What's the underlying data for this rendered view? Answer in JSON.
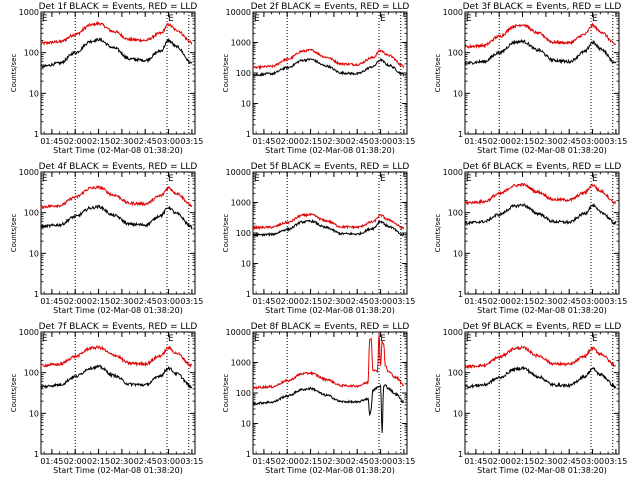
{
  "chart_data": [
    {
      "type": "line",
      "title": "Det 1f BLACK = Events, RED = LLD",
      "xlabel": "Start Time (02-Mar-08 01:38:20)",
      "ylabel": "Counts/sec",
      "yscale": "log",
      "ylim": [
        1,
        1000
      ],
      "yticks": [
        "1",
        "10",
        "100",
        "1000"
      ],
      "xticks": [
        "01:45",
        "02:00",
        "02:15",
        "02:30",
        "02:45",
        "03:00",
        "03:15"
      ],
      "xlim": [
        "01:38",
        "03:17"
      ],
      "markers": [
        {
          "time": "01:38",
          "label": "E"
        },
        {
          "time": "02:00",
          "label": ""
        },
        {
          "time": "02:59",
          "label": "E"
        },
        {
          "time": "03:13",
          "label": ""
        }
      ],
      "series": [
        {
          "name": "LLD",
          "color": "#e00000",
          "x": [
            "01:38",
            "01:50",
            "02:00",
            "02:10",
            "02:15",
            "02:25",
            "02:35",
            "02:45",
            "02:55",
            "03:00",
            "03:05",
            "03:15"
          ],
          "values": [
            170,
            185,
            280,
            480,
            520,
            330,
            210,
            200,
            300,
            490,
            360,
            180
          ]
        },
        {
          "name": "Events",
          "color": "#000000",
          "x": [
            "01:38",
            "01:50",
            "02:00",
            "02:10",
            "02:15",
            "02:25",
            "02:35",
            "02:45",
            "02:55",
            "03:00",
            "03:05",
            "03:15"
          ],
          "values": [
            45,
            55,
            100,
            190,
            210,
            130,
            70,
            65,
            110,
            200,
            140,
            55
          ]
        }
      ]
    },
    {
      "type": "line",
      "title": "Det 2f BLACK = Events, RED = LLD",
      "xlabel": "Start Time (02-Mar-08 01:38:20)",
      "ylabel": "Counts/sec",
      "yscale": "log",
      "ylim": [
        1,
        10000
      ],
      "yticks": [
        "1",
        "10",
        "100",
        "1000",
        "10000"
      ],
      "xticks": [
        "01:45",
        "02:00",
        "02:15",
        "02:30",
        "02:45",
        "03:00",
        "03:15"
      ],
      "xlim": [
        "01:38",
        "03:17"
      ],
      "markers": [
        {
          "time": "01:38",
          "label": "E"
        },
        {
          "time": "02:00",
          "label": ""
        },
        {
          "time": "02:59",
          "label": "E"
        },
        {
          "time": "03:13",
          "label": ""
        }
      ],
      "series": [
        {
          "name": "LLD",
          "color": "#e00000",
          "x": [
            "01:38",
            "01:50",
            "02:00",
            "02:10",
            "02:15",
            "02:25",
            "02:35",
            "02:45",
            "02:55",
            "03:00",
            "03:05",
            "03:15"
          ],
          "values": [
            150,
            165,
            280,
            520,
            560,
            330,
            200,
            190,
            320,
            540,
            380,
            170
          ]
        },
        {
          "name": "Events",
          "color": "#000000",
          "x": [
            "01:38",
            "01:50",
            "02:00",
            "02:10",
            "02:15",
            "02:25",
            "02:35",
            "02:45",
            "02:55",
            "03:00",
            "03:05",
            "03:15"
          ],
          "values": [
            85,
            95,
            150,
            260,
            280,
            170,
            100,
            95,
            160,
            270,
            180,
            90
          ]
        }
      ]
    },
    {
      "type": "line",
      "title": "Det 3f BLACK = Events, RED = LLD",
      "xlabel": "Start Time (02-Mar-08 01:38:20)",
      "ylabel": "Counts/sec",
      "yscale": "log",
      "ylim": [
        1,
        1000
      ],
      "yticks": [
        "1",
        "10",
        "100",
        "1000"
      ],
      "xticks": [
        "01:45",
        "02:00",
        "02:15",
        "02:30",
        "02:45",
        "03:00",
        "03:15"
      ],
      "xlim": [
        "01:38",
        "03:17"
      ],
      "markers": [
        {
          "time": "01:38",
          "label": "E"
        },
        {
          "time": "02:00",
          "label": ""
        },
        {
          "time": "02:59",
          "label": "E"
        },
        {
          "time": "03:13",
          "label": ""
        }
      ],
      "series": [
        {
          "name": "LLD",
          "color": "#e00000",
          "x": [
            "01:38",
            "01:50",
            "02:00",
            "02:10",
            "02:15",
            "02:25",
            "02:35",
            "02:45",
            "02:55",
            "03:00",
            "03:05",
            "03:15"
          ],
          "values": [
            140,
            150,
            250,
            450,
            490,
            300,
            180,
            175,
            280,
            470,
            330,
            160
          ]
        },
        {
          "name": "Events",
          "color": "#000000",
          "x": [
            "01:38",
            "01:50",
            "02:00",
            "02:10",
            "02:15",
            "02:25",
            "02:35",
            "02:45",
            "02:55",
            "03:00",
            "03:05",
            "03:15"
          ],
          "values": [
            55,
            60,
            100,
            180,
            190,
            115,
            65,
            60,
            105,
            180,
            125,
            55
          ]
        }
      ]
    },
    {
      "type": "line",
      "title": "Det 4f BLACK = Events, RED = LLD",
      "xlabel": "Start Time (02-Mar-08 01:38:20)",
      "ylabel": "Counts/sec",
      "yscale": "log",
      "ylim": [
        1,
        1000
      ],
      "yticks": [
        "1",
        "10",
        "100",
        "1000"
      ],
      "xticks": [
        "01:45",
        "02:00",
        "02:15",
        "02:30",
        "02:45",
        "03:00",
        "03:15"
      ],
      "xlim": [
        "01:38",
        "03:17"
      ],
      "markers": [
        {
          "time": "01:38",
          "label": "E"
        },
        {
          "time": "02:00",
          "label": ""
        },
        {
          "time": "02:59",
          "label": "E"
        },
        {
          "time": "03:13",
          "label": ""
        }
      ],
      "series": [
        {
          "name": "LLD",
          "color": "#e00000",
          "x": [
            "01:38",
            "01:50",
            "02:00",
            "02:10",
            "02:15",
            "02:25",
            "02:35",
            "02:45",
            "02:55",
            "03:00",
            "03:05",
            "03:15"
          ],
          "values": [
            140,
            150,
            240,
            400,
            420,
            270,
            170,
            165,
            260,
            410,
            300,
            150
          ]
        },
        {
          "name": "Events",
          "color": "#000000",
          "x": [
            "01:38",
            "01:50",
            "02:00",
            "02:10",
            "02:15",
            "02:25",
            "02:35",
            "02:45",
            "02:55",
            "03:00",
            "03:05",
            "03:15"
          ],
          "values": [
            45,
            50,
            80,
            130,
            140,
            85,
            52,
            50,
            85,
            135,
            95,
            45
          ]
        }
      ]
    },
    {
      "type": "line",
      "title": "Det 5f BLACK = Events, RED = LLD",
      "xlabel": "Start Time (02-Mar-08 01:38:20)",
      "ylabel": "Counts/sec",
      "yscale": "log",
      "ylim": [
        1,
        10000
      ],
      "yticks": [
        "1",
        "10",
        "100",
        "1000",
        "10000"
      ],
      "xticks": [
        "01:45",
        "02:00",
        "02:15",
        "02:30",
        "02:45",
        "03:00",
        "03:15"
      ],
      "xlim": [
        "01:38",
        "03:17"
      ],
      "markers": [
        {
          "time": "01:38",
          "label": "E"
        },
        {
          "time": "02:00",
          "label": ""
        },
        {
          "time": "02:59",
          "label": "E"
        },
        {
          "time": "03:13",
          "label": ""
        }
      ],
      "series": [
        {
          "name": "LLD",
          "color": "#e00000",
          "x": [
            "01:38",
            "01:50",
            "02:00",
            "02:10",
            "02:15",
            "02:25",
            "02:35",
            "02:45",
            "02:55",
            "03:00",
            "03:05",
            "03:15"
          ],
          "values": [
            150,
            155,
            220,
            380,
            400,
            250,
            160,
            155,
            230,
            380,
            270,
            145
          ]
        },
        {
          "name": "Events",
          "color": "#000000",
          "x": [
            "01:38",
            "01:50",
            "02:00",
            "02:10",
            "02:15",
            "02:25",
            "02:35",
            "02:45",
            "02:55",
            "03:00",
            "03:05",
            "03:15"
          ],
          "values": [
            85,
            90,
            130,
            230,
            245,
            150,
            95,
            92,
            140,
            240,
            165,
            85
          ]
        }
      ]
    },
    {
      "type": "line",
      "title": "Det 6f BLACK = Events, RED = LLD",
      "xlabel": "Start Time (02-Mar-08 01:38:20)",
      "ylabel": "Counts/sec",
      "yscale": "log",
      "ylim": [
        1,
        1000
      ],
      "yticks": [
        "1",
        "10",
        "100",
        "1000"
      ],
      "xticks": [
        "01:45",
        "02:00",
        "02:15",
        "02:30",
        "02:45",
        "03:00",
        "03:15"
      ],
      "xlim": [
        "01:38",
        "03:17"
      ],
      "markers": [
        {
          "time": "01:38",
          "label": "E"
        },
        {
          "time": "02:00",
          "label": ""
        },
        {
          "time": "02:59",
          "label": "E"
        },
        {
          "time": "03:13",
          "label": ""
        }
      ],
      "series": [
        {
          "name": "LLD",
          "color": "#e00000",
          "x": [
            "01:38",
            "01:50",
            "02:00",
            "02:10",
            "02:15",
            "02:25",
            "02:35",
            "02:45",
            "02:55",
            "03:00",
            "03:05",
            "03:15"
          ],
          "values": [
            175,
            185,
            290,
            460,
            490,
            320,
            210,
            205,
            310,
            480,
            340,
            175
          ]
        },
        {
          "name": "Events",
          "color": "#000000",
          "x": [
            "01:38",
            "01:50",
            "02:00",
            "02:10",
            "02:15",
            "02:25",
            "02:35",
            "02:45",
            "02:55",
            "03:00",
            "03:05",
            "03:15"
          ],
          "values": [
            55,
            60,
            90,
            145,
            155,
            95,
            60,
            58,
            95,
            150,
            105,
            55
          ]
        }
      ]
    },
    {
      "type": "line",
      "title": "Det 7f BLACK = Events, RED = LLD",
      "xlabel": "Start Time (02-Mar-08 01:38:20)",
      "ylabel": "Counts/sec",
      "yscale": "log",
      "ylim": [
        1,
        1000
      ],
      "yticks": [
        "1",
        "10",
        "100",
        "1000"
      ],
      "xticks": [
        "01:45",
        "02:00",
        "02:15",
        "02:30",
        "02:45",
        "03:00",
        "03:15"
      ],
      "xlim": [
        "01:38",
        "03:17"
      ],
      "markers": [
        {
          "time": "01:38",
          "label": "E"
        },
        {
          "time": "02:00",
          "label": ""
        },
        {
          "time": "02:59",
          "label": "E"
        },
        {
          "time": "03:13",
          "label": ""
        }
      ],
      "series": [
        {
          "name": "LLD",
          "color": "#e00000",
          "x": [
            "01:38",
            "01:50",
            "02:00",
            "02:10",
            "02:15",
            "02:25",
            "02:35",
            "02:45",
            "02:55",
            "03:00",
            "03:05",
            "03:15"
          ],
          "values": [
            150,
            160,
            250,
            400,
            420,
            270,
            170,
            165,
            260,
            410,
            300,
            150
          ]
        },
        {
          "name": "Events",
          "color": "#000000",
          "x": [
            "01:38",
            "01:50",
            "02:00",
            "02:10",
            "02:15",
            "02:25",
            "02:35",
            "02:45",
            "02:55",
            "03:00",
            "03:05",
            "03:15"
          ],
          "values": [
            45,
            50,
            80,
            130,
            140,
            85,
            52,
            50,
            85,
            130,
            95,
            45
          ]
        }
      ]
    },
    {
      "type": "line",
      "title": "Det 8f BLACK = Events, RED = LLD",
      "xlabel": "Start Time (02-Mar-08 01:38:20)",
      "ylabel": "Counts/sec",
      "yscale": "log",
      "ylim": [
        1,
        10000
      ],
      "yticks": [
        "1",
        "10",
        "100",
        "1000",
        "10000"
      ],
      "xticks": [
        "01:45",
        "02:00",
        "02:15",
        "02:30",
        "02:45",
        "03:00",
        "03:15"
      ],
      "xlim": [
        "01:38",
        "03:17"
      ],
      "markers": [
        {
          "time": "01:38",
          "label": "E"
        },
        {
          "time": "02:00",
          "label": ""
        },
        {
          "time": "02:59",
          "label": "E"
        },
        {
          "time": "03:13",
          "label": ""
        }
      ],
      "series": [
        {
          "name": "LLD",
          "color": "#e00000",
          "x": [
            "01:38",
            "01:50",
            "02:00",
            "02:10",
            "02:15",
            "02:25",
            "02:35",
            "02:45",
            "02:52",
            "02:53",
            "02:54",
            "02:55",
            "02:58",
            "02:59",
            "03:00",
            "03:01",
            "03:02",
            "03:03",
            "03:05",
            "03:10",
            "03:15"
          ],
          "values": [
            150,
            160,
            250,
            430,
            450,
            280,
            175,
            170,
            220,
            6000,
            6000,
            600,
            500,
            9000,
            800,
            5000,
            4000,
            800,
            500,
            320,
            180
          ]
        },
        {
          "name": "Events",
          "color": "#000000",
          "x": [
            "01:38",
            "01:50",
            "02:00",
            "02:10",
            "02:15",
            "02:25",
            "02:35",
            "02:45",
            "02:52",
            "02:53",
            "02:54",
            "02:55",
            "02:58",
            "02:59",
            "03:00",
            "03:01",
            "03:02",
            "03:03",
            "03:05",
            "03:10",
            "03:15"
          ],
          "values": [
            45,
            50,
            80,
            130,
            140,
            85,
            52,
            50,
            65,
            20,
            30,
            120,
            150,
            160,
            170,
            5,
            160,
            180,
            140,
            90,
            50
          ]
        }
      ]
    },
    {
      "type": "line",
      "title": "Det 9f BLACK = Events, RED = LLD",
      "xlabel": "Start Time (02-Mar-08 01:38:20)",
      "ylabel": "Counts/sec",
      "yscale": "log",
      "ylim": [
        1,
        1000
      ],
      "yticks": [
        "1",
        "10",
        "100",
        "1000"
      ],
      "xticks": [
        "01:45",
        "02:00",
        "02:15",
        "02:30",
        "02:45",
        "03:00",
        "03:15"
      ],
      "xlim": [
        "01:38",
        "03:17"
      ],
      "markers": [
        {
          "time": "01:38",
          "label": "E"
        },
        {
          "time": "02:00",
          "label": ""
        },
        {
          "time": "02:59",
          "label": "E"
        },
        {
          "time": "03:13",
          "label": ""
        }
      ],
      "series": [
        {
          "name": "LLD",
          "color": "#e00000",
          "x": [
            "01:38",
            "01:50",
            "02:00",
            "02:10",
            "02:15",
            "02:25",
            "02:35",
            "02:45",
            "02:55",
            "03:00",
            "03:05",
            "03:15"
          ],
          "values": [
            140,
            150,
            240,
            390,
            410,
            260,
            165,
            160,
            250,
            400,
            290,
            150
          ]
        },
        {
          "name": "Events",
          "color": "#000000",
          "x": [
            "01:38",
            "01:50",
            "02:00",
            "02:10",
            "02:15",
            "02:25",
            "02:35",
            "02:45",
            "02:55",
            "03:00",
            "03:05",
            "03:15"
          ],
          "values": [
            45,
            50,
            75,
            120,
            130,
            80,
            50,
            48,
            80,
            125,
            90,
            45
          ]
        }
      ]
    }
  ]
}
